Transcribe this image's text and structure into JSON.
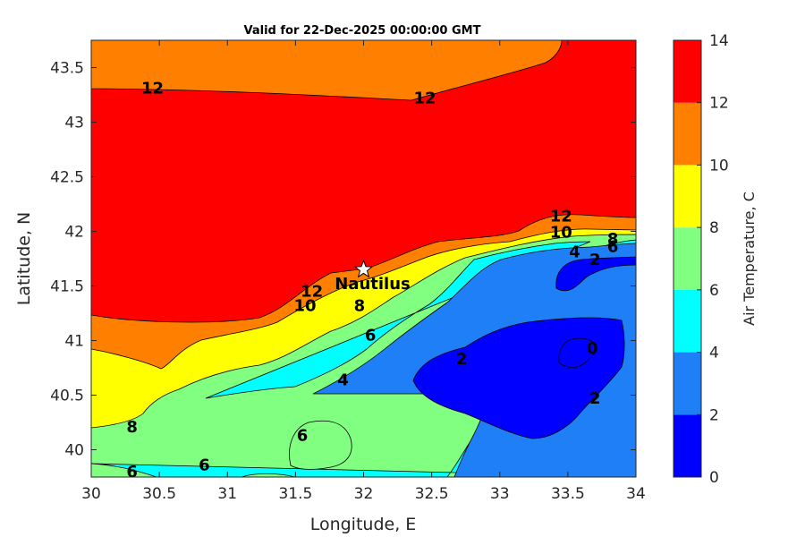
{
  "chart_data": {
    "type": "filled-contour",
    "title": "Valid for 22-Dec-2025 00:00:00 GMT",
    "xlabel": "Longitude, E",
    "ylabel": "Latitude, N",
    "xlim": [
      30,
      34
    ],
    "ylim": [
      39.75,
      43.75
    ],
    "xticks": [
      "30",
      "30.5",
      "31",
      "31.5",
      "32",
      "32.5",
      "33",
      "33.5",
      "34"
    ],
    "yticks": [
      "40",
      "40.5",
      "41",
      "41.5",
      "42",
      "42.5",
      "43",
      "43.5"
    ],
    "colorbar": {
      "label": "Air Temperature, C",
      "levels": [
        0,
        2,
        4,
        6,
        8,
        10,
        12,
        14
      ],
      "tick_labels": [
        "0",
        "2",
        "4",
        "6",
        "8",
        "10",
        "12",
        "14"
      ],
      "colors": [
        "#0000ff",
        "#1e7ff7",
        "#00ffff",
        "#80ff80",
        "#ffff00",
        "#ff8000",
        "#ff0000",
        "#800000"
      ]
    },
    "contour_labels": [
      {
        "text": "12",
        "lon": 30.45,
        "lat": 43.31
      },
      {
        "text": "12",
        "lon": 32.45,
        "lat": 43.22
      },
      {
        "text": "12",
        "lon": 33.45,
        "lat": 42.14
      },
      {
        "text": "10",
        "lon": 33.45,
        "lat": 41.99
      },
      {
        "text": "8",
        "lon": 33.83,
        "lat": 41.93
      },
      {
        "text": "6",
        "lon": 33.83,
        "lat": 41.86
      },
      {
        "text": "4",
        "lon": 33.55,
        "lat": 41.81
      },
      {
        "text": "2",
        "lon": 33.7,
        "lat": 41.74
      },
      {
        "text": "12",
        "lon": 31.62,
        "lat": 41.45
      },
      {
        "text": "10",
        "lon": 31.57,
        "lat": 41.32
      },
      {
        "text": "8",
        "lon": 31.97,
        "lat": 41.32
      },
      {
        "text": "6",
        "lon": 32.05,
        "lat": 41.05
      },
      {
        "text": "4",
        "lon": 31.85,
        "lat": 40.64
      },
      {
        "text": "2",
        "lon": 32.72,
        "lat": 40.83
      },
      {
        "text": "0",
        "lon": 33.68,
        "lat": 40.93
      },
      {
        "text": "2",
        "lon": 33.7,
        "lat": 40.47
      },
      {
        "text": "8",
        "lon": 30.3,
        "lat": 40.21
      },
      {
        "text": "6",
        "lon": 31.55,
        "lat": 40.13
      },
      {
        "text": "6",
        "lon": 30.83,
        "lat": 39.86
      },
      {
        "text": "6",
        "lon": 30.3,
        "lat": 39.8
      }
    ],
    "station": {
      "name": "Nautilus",
      "lon": 32.0,
      "lat": 41.65
    }
  }
}
